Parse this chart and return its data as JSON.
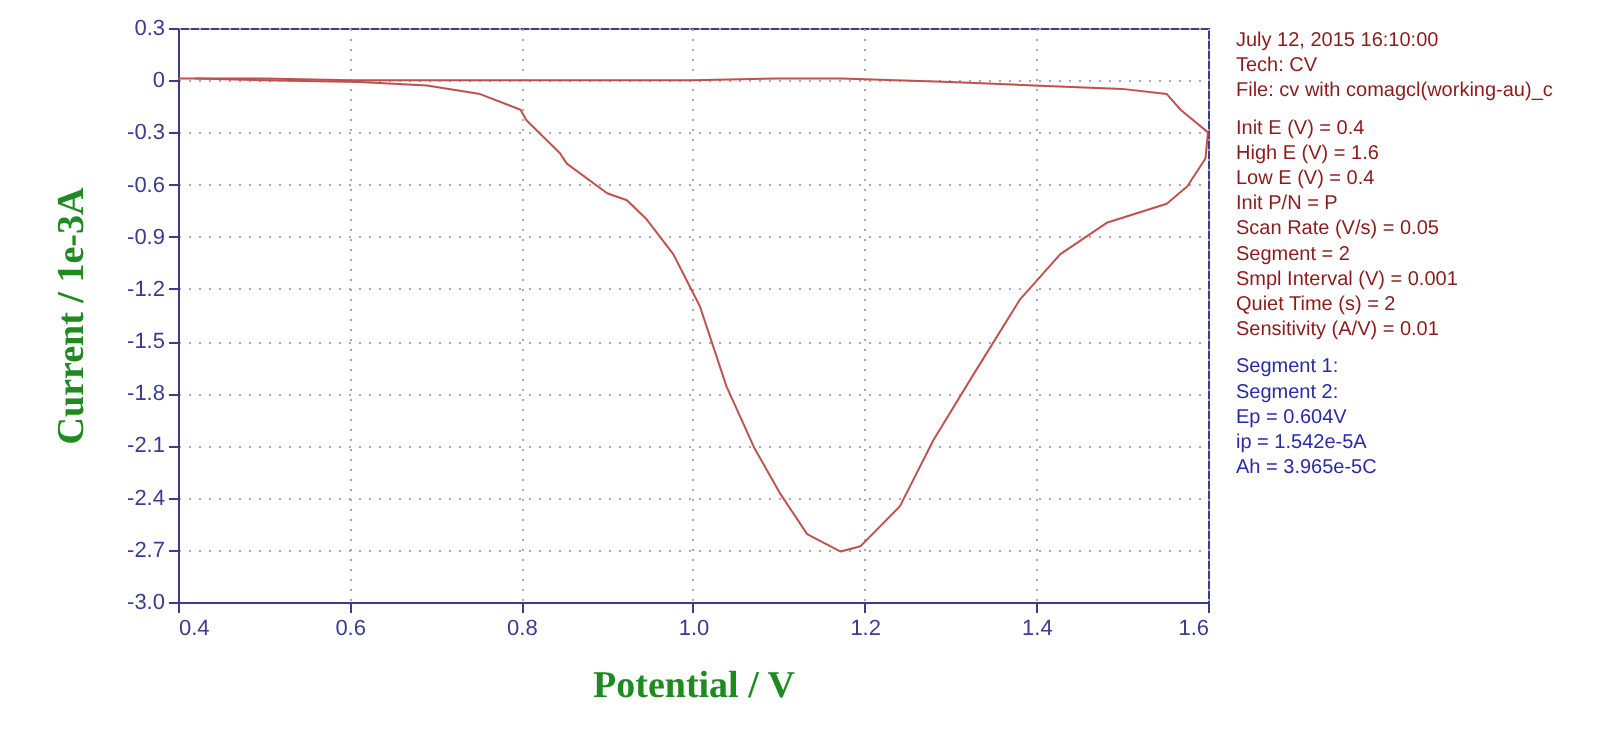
{
  "chart_data": {
    "type": "line",
    "xlabel": "Potential / V",
    "ylabel": "Current / 1e-3A",
    "xlim": [
      0.4,
      1.6
    ],
    "ylim": [
      -3.0,
      0.3
    ],
    "xticks": [
      0.4,
      0.6,
      0.8,
      {
        "value": 1.0,
        "label": "1.0"
      },
      1.2,
      1.4,
      1.6
    ],
    "yticks": [
      {
        "value": -3.0,
        "label": "-3.0"
      },
      -2.7,
      -2.4,
      -2.1,
      -1.8,
      -1.5,
      -1.2,
      -0.9,
      -0.6,
      -0.3,
      0,
      0.3
    ],
    "grid": true,
    "marker": "none",
    "line_style": "solid",
    "series": [
      {
        "color": "#c0504d",
        "x": [
          0.4,
          0.5,
          0.6,
          0.7,
          0.8,
          0.9,
          1.0,
          1.1,
          1.172,
          1.3,
          1.397,
          1.5,
          1.552,
          1.568,
          1.6
        ],
        "values": [
          0.01,
          0.01,
          0.0,
          0.0,
          0.0,
          0.0,
          0.0,
          0.01,
          0.01,
          -0.01,
          -0.03,
          -0.05,
          -0.08,
          -0.17,
          -0.3
        ]
      },
      {
        "color": "#c0504d",
        "x": [
          1.6,
          1.597,
          1.576,
          1.552,
          1.482,
          1.428,
          1.381,
          1.327,
          1.28,
          1.241,
          1.195,
          1.172,
          1.133,
          1.102,
          1.071,
          1.039,
          1.008,
          0.977,
          0.946,
          0.923,
          0.9,
          0.853,
          0.845,
          0.806,
          0.799,
          0.752,
          0.69,
          0.612,
          0.5,
          0.42
        ],
        "values": [
          -0.3,
          -0.45,
          -0.61,
          -0.71,
          -0.82,
          -1.0,
          -1.26,
          -1.69,
          -2.07,
          -2.45,
          -2.68,
          -2.71,
          -2.61,
          -2.38,
          -2.11,
          -1.76,
          -1.3,
          -1.0,
          -0.8,
          -0.69,
          -0.65,
          -0.48,
          -0.42,
          -0.23,
          -0.17,
          -0.08,
          -0.03,
          -0.01,
          0.0,
          0.01
        ]
      }
    ],
    "annotations": [
      "July 12, 2015   16:10:00",
      "Tech: CV",
      "File: cv with comagcl(working-au)_c",
      "Init E (V) = 0.4",
      "High E (V) = 1.6",
      "Low E (V) = 0.4",
      "Init P/N = P",
      "Scan Rate (V/s) = 0.05",
      "Segment = 2",
      "Smpl Interval (V) = 0.001",
      "Quiet Time (s) = 2",
      "Sensitivity (A/V) = 0.01",
      "Segment 1:",
      "Segment 2:",
      "Ep = 0.604V",
      "ip = 1.542e-5A",
      "Ah = 3.965e-5C"
    ]
  }
}
